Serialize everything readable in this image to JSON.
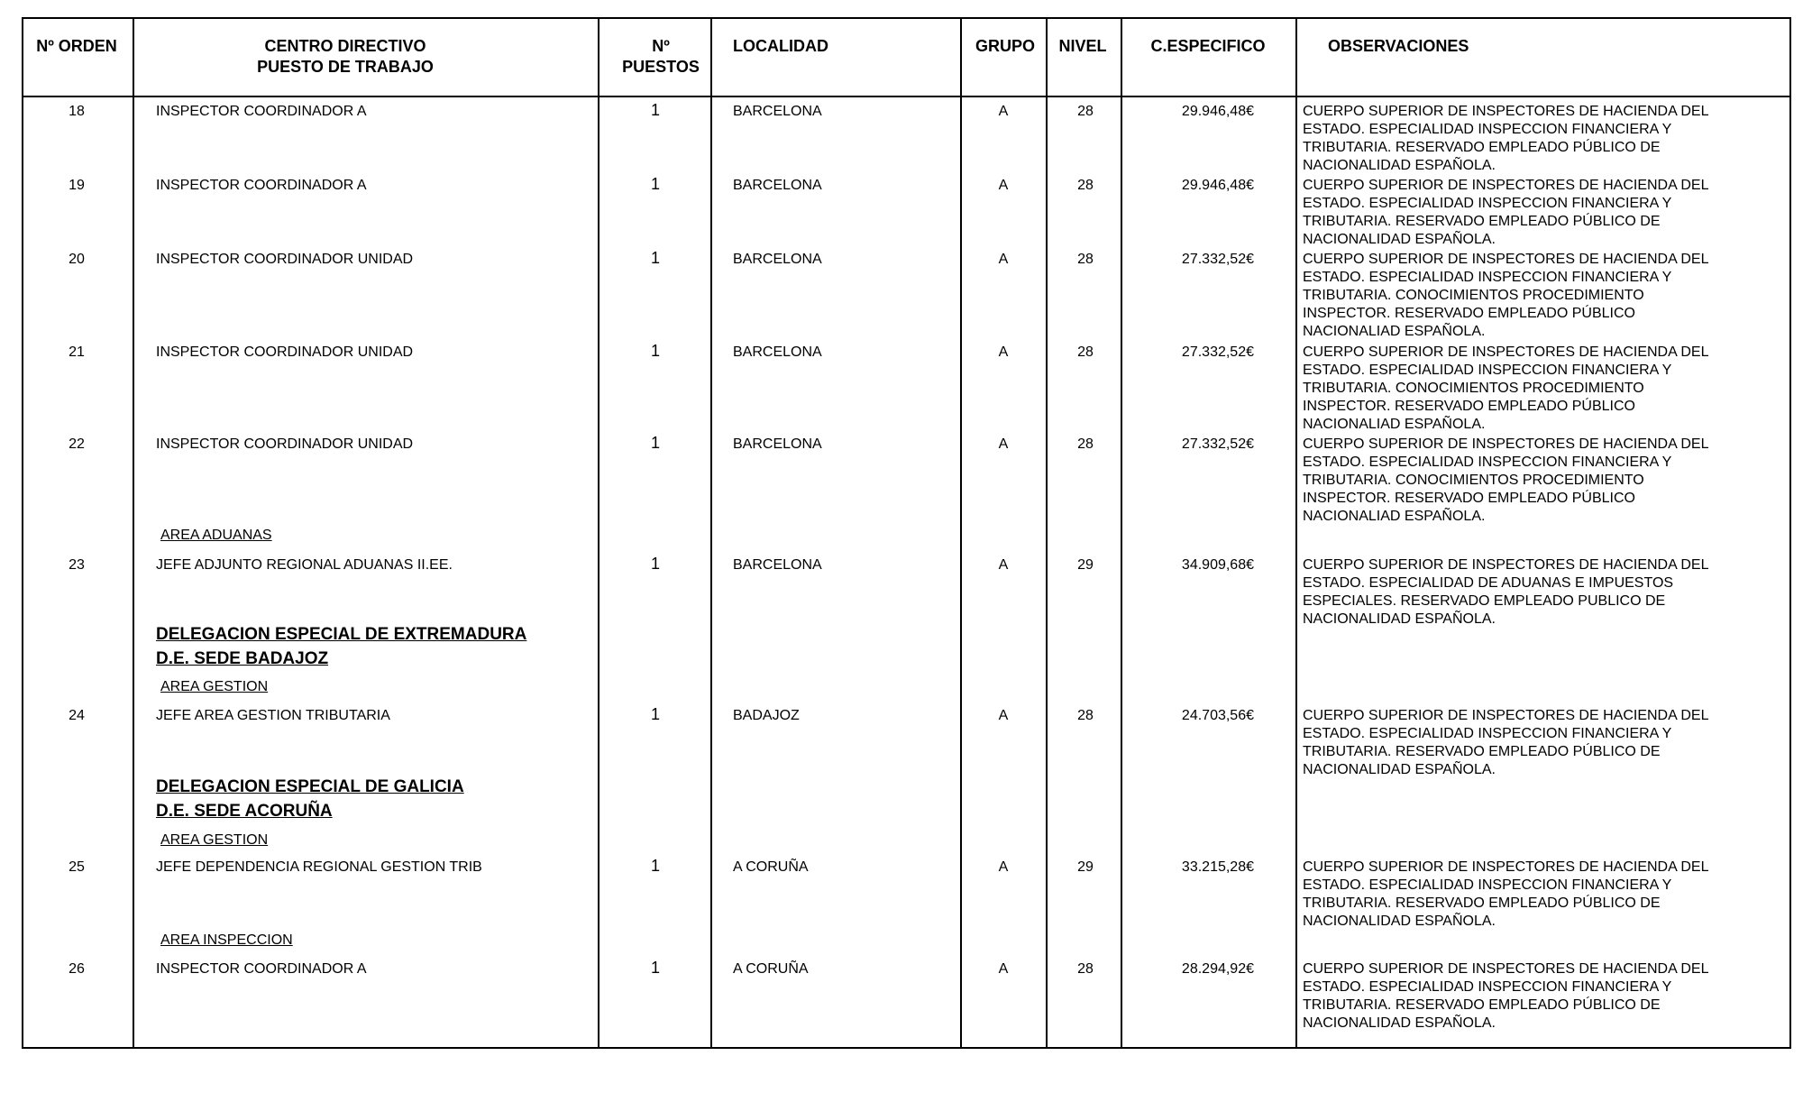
{
  "header": {
    "orden": "Nº ORDEN",
    "centro_line1": "CENTRO DIRECTIVO",
    "centro_line2": "PUESTO DE TRABAJO",
    "puestos_line1": "Nº",
    "puestos_line2": "PUESTOS",
    "localidad": "LOCALIDAD",
    "grupo": "GRUPO",
    "nivel": "NIVEL",
    "especifico": "C.ESPECIFICO",
    "observaciones": "OBSERVACIONES"
  },
  "headings": [
    {
      "text": "AREA ADUANAS",
      "type": "area"
    },
    {
      "text": "DELEGACION ESPECIAL DE EXTREMADURA",
      "type": "delegacion"
    },
    {
      "text": "D.E. SEDE BADAJOZ",
      "type": "delegacion"
    },
    {
      "text": "AREA GESTION",
      "type": "area"
    },
    {
      "text": "DELEGACION ESPECIAL DE GALICIA",
      "type": "delegacion"
    },
    {
      "text": "D.E. SEDE ACORUÑA",
      "type": "delegacion"
    },
    {
      "text": "AREA GESTION",
      "type": "area"
    },
    {
      "text": "AREA INSPECCION",
      "type": "area"
    }
  ],
  "rows": [
    {
      "orden": "18",
      "puesto": "INSPECTOR COORDINADOR A",
      "puestos": "1",
      "localidad": "BARCELONA",
      "grupo": "A",
      "nivel": "28",
      "especifico": "29.946,48€",
      "observaciones": "CUERPO SUPERIOR DE INSPECTORES DE HACIENDA DEL\nESTADO. ESPECIALIDAD INSPECCION FINANCIERA Y\nTRIBUTARIA. RESERVADO EMPLEADO PÚBLICO DE\nNACIONALIDAD ESPAÑOLA."
    },
    {
      "orden": "19",
      "puesto": "INSPECTOR COORDINADOR A",
      "puestos": "1",
      "localidad": "BARCELONA",
      "grupo": "A",
      "nivel": "28",
      "especifico": "29.946,48€",
      "observaciones": "CUERPO SUPERIOR DE INSPECTORES DE HACIENDA DEL\nESTADO. ESPECIALIDAD INSPECCION FINANCIERA Y\nTRIBUTARIA. RESERVADO EMPLEADO PÚBLICO DE\nNACIONALIDAD ESPAÑOLA."
    },
    {
      "orden": "20",
      "puesto": "INSPECTOR COORDINADOR UNIDAD",
      "puestos": "1",
      "localidad": "BARCELONA",
      "grupo": "A",
      "nivel": "28",
      "especifico": "27.332,52€",
      "observaciones": "CUERPO SUPERIOR DE INSPECTORES DE HACIENDA DEL\nESTADO. ESPECIALIDAD INSPECCION FINANCIERA Y\nTRIBUTARIA. CONOCIMIENTOS PROCEDIMIENTO\nINSPECTOR.  RESERVADO EMPLEADO PÚBLICO\nNACIONALIAD ESPAÑOLA."
    },
    {
      "orden": "21",
      "puesto": "INSPECTOR COORDINADOR UNIDAD",
      "puestos": "1",
      "localidad": "BARCELONA",
      "grupo": "A",
      "nivel": "28",
      "especifico": "27.332,52€",
      "observaciones": "CUERPO SUPERIOR DE INSPECTORES DE HACIENDA DEL\nESTADO. ESPECIALIDAD INSPECCION FINANCIERA Y\nTRIBUTARIA. CONOCIMIENTOS PROCEDIMIENTO\nINSPECTOR.  RESERVADO EMPLEADO PÚBLICO\nNACIONALIAD ESPAÑOLA."
    },
    {
      "orden": "22",
      "puesto": "INSPECTOR COORDINADOR UNIDAD",
      "puestos": "1",
      "localidad": "BARCELONA",
      "grupo": "A",
      "nivel": "28",
      "especifico": "27.332,52€",
      "observaciones": "CUERPO SUPERIOR DE INSPECTORES DE HACIENDA DEL\nESTADO. ESPECIALIDAD INSPECCION FINANCIERA Y\nTRIBUTARIA. CONOCIMIENTOS PROCEDIMIENTO\nINSPECTOR.  RESERVADO EMPLEADO PÚBLICO\nNACIONALIAD ESPAÑOLA."
    },
    {
      "orden": "23",
      "puesto": "JEFE ADJUNTO REGIONAL ADUANAS II.EE.",
      "puestos": "1",
      "localidad": "BARCELONA",
      "grupo": "A",
      "nivel": "29",
      "especifico": "34.909,68€",
      "observaciones": "CUERPO SUPERIOR DE INSPECTORES DE HACIENDA DEL\nESTADO. ESPECIALIDAD DE ADUANAS E IMPUESTOS\nESPECIALES. RESERVADO EMPLEADO PUBLICO DE\nNACIONALIDAD ESPAÑOLA."
    },
    {
      "orden": "24",
      "puesto": "JEFE AREA GESTION TRIBUTARIA",
      "puestos": "1",
      "localidad": "BADAJOZ",
      "grupo": "A",
      "nivel": "28",
      "especifico": "24.703,56€",
      "observaciones": "CUERPO SUPERIOR DE INSPECTORES DE HACIENDA DEL\nESTADO. ESPECIALIDAD INSPECCION FINANCIERA Y\nTRIBUTARIA. RESERVADO EMPLEADO PÚBLICO DE\nNACIONALIDAD ESPAÑOLA."
    },
    {
      "orden": "25",
      "puesto": "JEFE DEPENDENCIA REGIONAL GESTION TRIB",
      "puestos": "1",
      "localidad": "A CORUÑA",
      "grupo": "A",
      "nivel": "29",
      "especifico": "33.215,28€",
      "observaciones": "CUERPO SUPERIOR DE INSPECTORES DE HACIENDA DEL\nESTADO. ESPECIALIDAD INSPECCION FINANCIERA Y\nTRIBUTARIA. RESERVADO EMPLEADO PÚBLICO DE\nNACIONALIDAD ESPAÑOLA."
    },
    {
      "orden": "26",
      "puesto": "INSPECTOR COORDINADOR A",
      "puestos": "1",
      "localidad": "A CORUÑA",
      "grupo": "A",
      "nivel": "28",
      "especifico": "28.294,92€",
      "observaciones": "CUERPO SUPERIOR DE INSPECTORES DE HACIENDA DEL\nESTADO. ESPECIALIDAD INSPECCION FINANCIERA Y\nTRIBUTARIA. RESERVADO EMPLEADO PÚBLICO DE\nNACIONALIDAD ESPAÑOLA."
    }
  ]
}
